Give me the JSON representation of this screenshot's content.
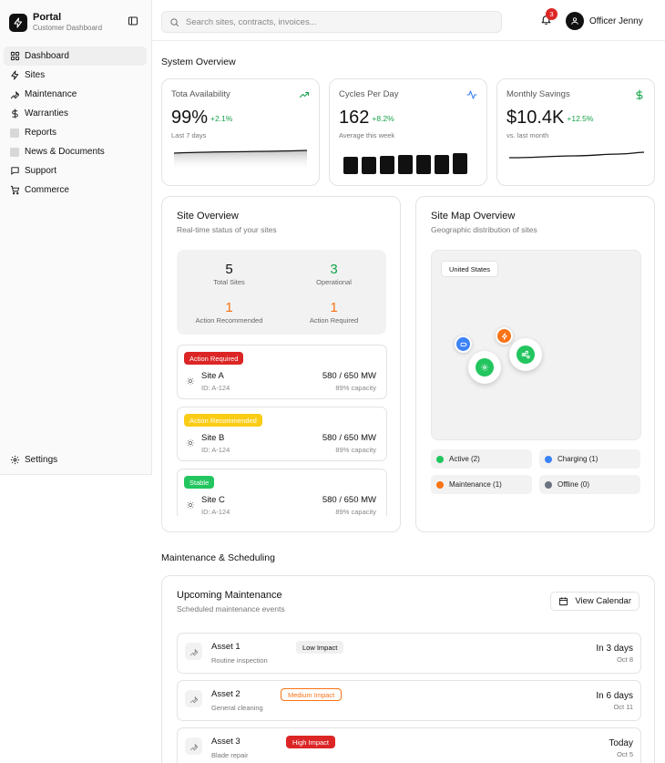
{
  "brand": {
    "title": "Portal",
    "subtitle": "Customer Dashboard"
  },
  "nav": {
    "items": [
      {
        "label": "Dashboard",
        "icon": "grid-icon"
      },
      {
        "label": "Sites",
        "icon": "bolt-icon"
      },
      {
        "label": "Maintenance",
        "icon": "wrench-icon"
      },
      {
        "label": "Warranties",
        "icon": "dollar-icon"
      },
      {
        "label": "Reports",
        "icon": "placeholder-icon"
      },
      {
        "label": "News & Documents",
        "icon": "placeholder-icon"
      },
      {
        "label": "Support",
        "icon": "chat-icon"
      },
      {
        "label": "Commerce",
        "icon": "cart-icon"
      }
    ],
    "settings": "Settings"
  },
  "header": {
    "search_placeholder": "Search sites, contracts, invoices...",
    "notifications": "3",
    "user_name": "Officer Jenny"
  },
  "overview": {
    "title": "System Overview",
    "stats": [
      {
        "label": "Tota Availability",
        "value": "99%",
        "delta": "+2.1%",
        "sub": "Last 7 days"
      },
      {
        "label": "Cycles Per Day",
        "value": "162",
        "delta": "+8.2%",
        "sub": "Average this week"
      },
      {
        "label": "Monthly Savings",
        "value": "$10.4K",
        "delta": "+12.5%",
        "sub": "vs. last month"
      }
    ],
    "colors": {
      "positive": "#16a34a",
      "accent_blue": "#3b82f6"
    }
  },
  "site_overview": {
    "title": "Site Overview",
    "subtitle": "Real-time status of your sites",
    "summary": [
      {
        "value": "5",
        "label": "Total Sites",
        "color": "#111111"
      },
      {
        "value": "3",
        "label": "Operational",
        "color": "#16a34a"
      },
      {
        "value": "1",
        "label": "Action Recommended",
        "color": "#f97316"
      },
      {
        "value": "1",
        "label": "Action Required",
        "color": "#f97316"
      }
    ],
    "sites": [
      {
        "status": "Action Required",
        "status_color": "#dc2626",
        "name": "Site A",
        "id": "ID: A-124",
        "power": "580 / 650 MW",
        "capacity": "89% capacity"
      },
      {
        "status": "Action Recommended",
        "status_color": "#facc15",
        "name": "Site B",
        "id": "ID: A-124",
        "power": "580 / 650 MW",
        "capacity": "89% capacity"
      },
      {
        "status": "Stable",
        "status_color": "#22c55e",
        "name": "Site C",
        "id": "ID: A-124",
        "power": "580 / 650 MW",
        "capacity": "89% capacity"
      }
    ]
  },
  "site_map": {
    "title": "Site Map Overview",
    "subtitle": "Geographic distribution of sites",
    "region": "United States",
    "legend": [
      {
        "label": "Active (2)",
        "color": "#22c55e"
      },
      {
        "label": "Charging (1)",
        "color": "#3b82f6"
      },
      {
        "label": "Maintenance (1)",
        "color": "#f97316"
      },
      {
        "label": "Offline (0)",
        "color": "#6b7280"
      }
    ]
  },
  "maintenance": {
    "section_title": "Maintenance & Scheduling",
    "title": "Upcoming Maintenance",
    "subtitle": "Scheduled maintenance events",
    "view_calendar": "View Calendar",
    "events": [
      {
        "asset": "Asset 1",
        "task": "Routine inspection",
        "impact": "Low Impact",
        "impact_style": "low",
        "when": "In 3 days",
        "date": "Oct 8"
      },
      {
        "asset": "Asset 2",
        "task": "General cleaning",
        "impact": "Medium Impact",
        "impact_style": "medium",
        "when": "In 6 days",
        "date": "Oct 11"
      },
      {
        "asset": "Asset 3",
        "task": "Blade repair",
        "impact": "High Impact",
        "impact_style": "high",
        "when": "Today",
        "date": "Oct 5"
      }
    ]
  }
}
